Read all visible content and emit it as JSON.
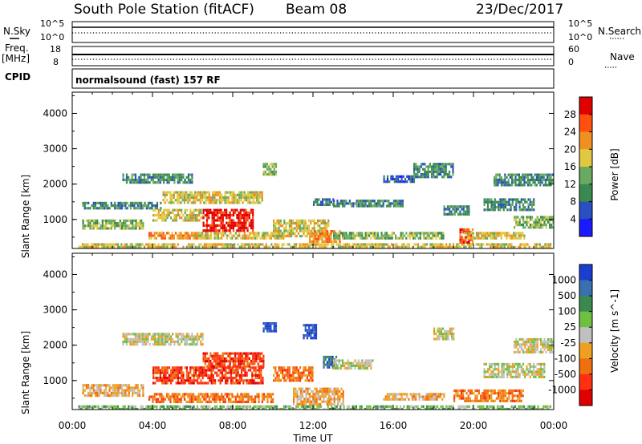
{
  "header": {
    "station": "South Pole Station (fitACF)",
    "beam": "Beam 08",
    "date": "23/Dec/2017"
  },
  "top_panels": {
    "nsky_label": "N.Sky",
    "nsky_ticks": [
      "10^5",
      "10^0"
    ],
    "nsearch_label": "N.Search",
    "nsearch_ticks": [
      "10^5",
      "10^0"
    ],
    "freq_label": "Freq.",
    "freq_unit": "[MHz]",
    "freq_ticks": [
      "18",
      "8"
    ],
    "nave_label": "Nave",
    "nave_ticks": [
      "60",
      "0"
    ],
    "cpid_label": "CPID",
    "cpid_text": "normalsound (fast) 157 RF"
  },
  "chart_data": [
    {
      "type": "heatmap",
      "panel": "power",
      "ylabel": "Slant Range [km]",
      "ylim": [
        180,
        4600
      ],
      "yticks": [
        1000,
        2000,
        3000,
        4000
      ],
      "colorbar_label": "Power [dB]",
      "colorbar_ticks": [
        4,
        8,
        12,
        16,
        20,
        24,
        28
      ],
      "colorbar_colors": [
        "#1a1aff",
        "#2850c0",
        "#3a8a50",
        "#6aaa60",
        "#e0c840",
        "#f09020",
        "#ff5010",
        "#e00000"
      ],
      "regions": [
        {
          "t0": 0.3,
          "t1": 23.8,
          "r0": 200,
          "r1": 330,
          "level": 4
        },
        {
          "t0": 0.5,
          "t1": 3.5,
          "r0": 750,
          "r1": 1000,
          "level": 3
        },
        {
          "t0": 0.5,
          "t1": 4.5,
          "r0": 1350,
          "r1": 1500,
          "level": 2
        },
        {
          "t0": 2.5,
          "t1": 6.0,
          "r0": 2050,
          "r1": 2300,
          "level": 2
        },
        {
          "t0": 3.8,
          "t1": 6.5,
          "r0": 500,
          "r1": 650,
          "level": 5
        },
        {
          "t0": 4.0,
          "t1": 6.5,
          "r0": 1000,
          "r1": 1300,
          "level": 4
        },
        {
          "t0": 4.5,
          "t1": 9.5,
          "r0": 1500,
          "r1": 1800,
          "level": 4
        },
        {
          "t0": 6.5,
          "t1": 9.0,
          "r0": 700,
          "r1": 1300,
          "level": 7
        },
        {
          "t0": 6.0,
          "t1": 10.5,
          "r0": 450,
          "r1": 650,
          "level": 4
        },
        {
          "t0": 9.5,
          "t1": 10.2,
          "r0": 2300,
          "r1": 2600,
          "level": 3
        },
        {
          "t0": 10.0,
          "t1": 12.8,
          "r0": 500,
          "r1": 1000,
          "level": 4
        },
        {
          "t0": 11.8,
          "t1": 13.3,
          "r0": 350,
          "r1": 700,
          "level": 5
        },
        {
          "t0": 12.0,
          "t1": 13.0,
          "r0": 1400,
          "r1": 1600,
          "level": 2
        },
        {
          "t0": 13.0,
          "t1": 16.5,
          "r0": 1380,
          "r1": 1560,
          "level": 2
        },
        {
          "t0": 13.0,
          "t1": 18.5,
          "r0": 500,
          "r1": 650,
          "level": 3
        },
        {
          "t0": 15.5,
          "t1": 17.0,
          "r0": 2050,
          "r1": 2250,
          "level": 1
        },
        {
          "t0": 17.0,
          "t1": 19.0,
          "r0": 2200,
          "r1": 2600,
          "level": 2
        },
        {
          "t0": 18.5,
          "t1": 19.8,
          "r0": 1150,
          "r1": 1400,
          "level": 2
        },
        {
          "t0": 19.3,
          "t1": 20.0,
          "r0": 350,
          "r1": 750,
          "level": 6
        },
        {
          "t0": 19.5,
          "t1": 22.5,
          "r0": 450,
          "r1": 650,
          "level": 4
        },
        {
          "t0": 20.5,
          "t1": 23.0,
          "r0": 1250,
          "r1": 1600,
          "level": 2
        },
        {
          "t0": 22.0,
          "t1": 24.0,
          "r0": 800,
          "r1": 1100,
          "level": 3
        },
        {
          "t0": 21.0,
          "t1": 24.0,
          "r0": 1950,
          "r1": 2300,
          "level": 2
        }
      ]
    },
    {
      "type": "heatmap",
      "panel": "velocity",
      "ylabel": "Slant Range [km]",
      "xlabel": "Time UT",
      "ylim": [
        180,
        4600
      ],
      "yticks": [
        1000,
        2000,
        3000,
        4000
      ],
      "xticks": [
        "00:00",
        "04:00",
        "08:00",
        "12:00",
        "16:00",
        "20:00",
        "00:00"
      ],
      "colorbar_label": "Velocity [m s^-1]",
      "colorbar_ticks": [
        1000,
        500,
        100,
        25,
        -25,
        -100,
        -500,
        -1000
      ],
      "colorbar_colors": [
        "#1a3fd0",
        "#3a70b0",
        "#3a8a50",
        "#70c040",
        "#c0c0c0",
        "#f0a020",
        "#f07010",
        "#ff3010",
        "#e00000"
      ],
      "regions": [
        {
          "t0": 0.3,
          "t1": 23.8,
          "r0": 200,
          "r1": 300,
          "level": 3
        },
        {
          "t0": 0.5,
          "t1": 3.5,
          "r0": 600,
          "r1": 900,
          "level": 5
        },
        {
          "t0": 2.5,
          "t1": 6.5,
          "r0": 2000,
          "r1": 2350,
          "level": 4
        },
        {
          "t0": 3.8,
          "t1": 10.0,
          "r0": 400,
          "r1": 650,
          "level": 6
        },
        {
          "t0": 4.0,
          "t1": 9.5,
          "r0": 900,
          "r1": 1400,
          "level": 7
        },
        {
          "t0": 6.5,
          "t1": 9.5,
          "r0": 1400,
          "r1": 1800,
          "level": 7
        },
        {
          "t0": 9.5,
          "t1": 10.2,
          "r0": 2400,
          "r1": 2650,
          "level": 0
        },
        {
          "t0": 10.0,
          "t1": 12.0,
          "r0": 1000,
          "r1": 1400,
          "level": 6
        },
        {
          "t0": 11.0,
          "t1": 13.5,
          "r0": 350,
          "r1": 800,
          "level": 5
        },
        {
          "t0": 11.5,
          "t1": 12.2,
          "r0": 2200,
          "r1": 2600,
          "level": 0
        },
        {
          "t0": 12.5,
          "t1": 13.2,
          "r0": 1350,
          "r1": 1700,
          "level": 1
        },
        {
          "t0": 13.0,
          "t1": 15.0,
          "r0": 1350,
          "r1": 1600,
          "level": 4
        },
        {
          "t0": 15.5,
          "t1": 18.5,
          "r0": 500,
          "r1": 650,
          "level": 5
        },
        {
          "t0": 18.0,
          "t1": 19.0,
          "r0": 2200,
          "r1": 2500,
          "level": 4
        },
        {
          "t0": 19.0,
          "t1": 22.5,
          "r0": 450,
          "r1": 750,
          "level": 6
        },
        {
          "t0": 20.5,
          "t1": 23.5,
          "r0": 1100,
          "r1": 1500,
          "level": 4
        },
        {
          "t0": 22.0,
          "t1": 24.0,
          "r0": 1800,
          "r1": 2200,
          "level": 4
        }
      ]
    }
  ]
}
